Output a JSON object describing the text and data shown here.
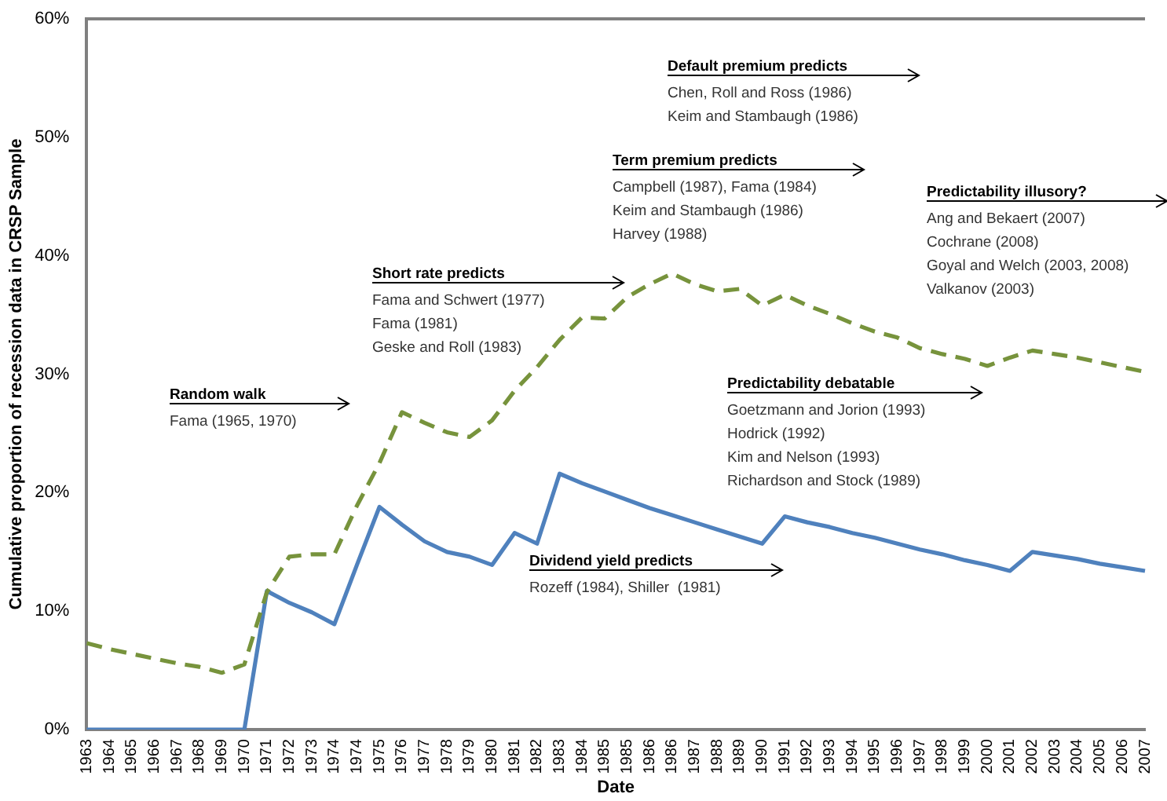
{
  "chart_data": {
    "type": "line",
    "xlabel": "Date",
    "ylabel": "Cumulative proportion of recession data in CRSP Sample",
    "categories": [
      "1963",
      "1964",
      "1965",
      "1966",
      "1967",
      "1968",
      "1969",
      "1970",
      "1971",
      "1972",
      "1973",
      "1974",
      "1974",
      "1975",
      "1976",
      "1977",
      "1978",
      "1979",
      "1980",
      "1981",
      "1982",
      "1983",
      "1984",
      "1985",
      "1985",
      "1986",
      "1986",
      "1987",
      "1988",
      "1989",
      "1990",
      "1991",
      "1992",
      "1993",
      "1994",
      "1995",
      "1996",
      "1997",
      "1998",
      "1999",
      "2000",
      "2001",
      "2002",
      "2003",
      "2004",
      "2005",
      "2006",
      "2007"
    ],
    "series": [
      {
        "color": "#77933c",
        "line_style": "dashed",
        "values": [
          7.3,
          6.8,
          6.4,
          6.0,
          5.6,
          5.3,
          4.8,
          5.5,
          11.6,
          14.6,
          14.8,
          14.8,
          18.9,
          22.5,
          26.8,
          25.9,
          25.1,
          24.7,
          26.1,
          28.6,
          30.6,
          32.9,
          34.8,
          34.7,
          36.5,
          37.6,
          38.5,
          37.6,
          37.0,
          37.2,
          35.8,
          36.7,
          35.8,
          35.1,
          34.3,
          33.6,
          33.1,
          32.2,
          31.7,
          31.3,
          30.7,
          31.4,
          32.0,
          31.7,
          31.4,
          31.0,
          30.6,
          30.2
        ]
      },
      {
        "color": "#4f81bd",
        "line_style": "solid",
        "values": [
          0,
          0,
          0,
          0,
          0,
          0,
          0,
          0,
          11.7,
          10.7,
          9.9,
          8.9,
          13.9,
          18.8,
          17.3,
          15.9,
          15.0,
          14.6,
          13.9,
          16.6,
          15.7,
          21.6,
          20.8,
          20.1,
          19.4,
          18.7,
          18.1,
          17.5,
          16.9,
          16.3,
          15.7,
          18.0,
          17.5,
          17.1,
          16.6,
          16.2,
          15.7,
          15.2,
          14.8,
          14.3,
          13.9,
          13.4,
          15.0,
          14.7,
          14.4,
          14.0,
          13.7,
          13.4
        ]
      }
    ],
    "ylim": [
      0,
      60
    ],
    "yticks": [
      {
        "value": 0,
        "label": "0%"
      },
      {
        "value": 10,
        "label": "10%"
      },
      {
        "value": 20,
        "label": "20%"
      },
      {
        "value": 30,
        "label": "30%"
      },
      {
        "value": 40,
        "label": "40%"
      },
      {
        "value": 50,
        "label": "50%"
      },
      {
        "value": 60,
        "label": "60%"
      }
    ],
    "grid": false,
    "legend": false,
    "marker": "none",
    "annotations": [
      "Random walk\nFama (1965, 1970)",
      "Short rate predicts\nFama and Schwert (1977)\nFama (1981)\nGeske and Roll (1983)",
      "Default premium predicts\nChen, Roll and Ross (1986)\nKeim and Stambaugh (1986)",
      "Term premium predicts\nCampbell (1987), Fama (1984)\nKeim and Stambaugh (1986)\nHarvey (1988)",
      "Predictability illusory?\nAng and Bekaert (2007)\nCochrane (2008)\nGoyal and Welch (2003, 2008)\nValkanov (2003)",
      "Predictability debatable\nGoetzmann and Jorion (1993)\nHodrick (1992)\nKim and Nelson (1993)\nRichardson and Stock (1989)",
      "Dividend yield predicts\nRozeff (1984), Shiller  (1981)"
    ]
  }
}
